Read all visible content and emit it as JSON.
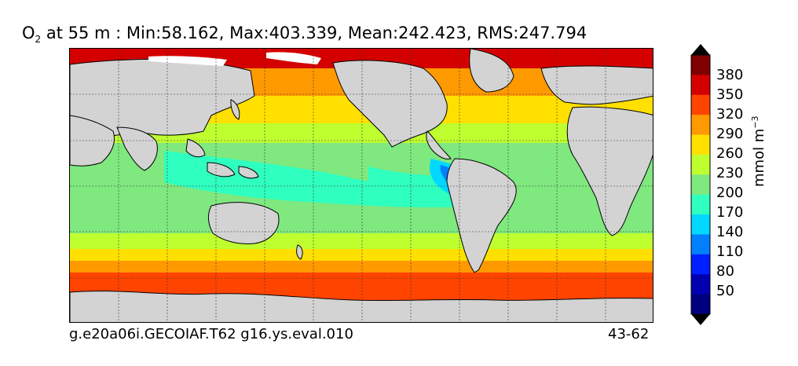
{
  "title": {
    "species_main": "O",
    "species_sub": "2",
    "rest": " at 55 m : Min:58.162, Max:403.339, Mean:242.423, RMS:247.794"
  },
  "footer": {
    "left": "g.e20a06i.GECOIAF.T62 g16.ys.eval.010",
    "right": "43-62"
  },
  "colorbar": {
    "unit_main": "mmol m",
    "unit_exp": "−3",
    "ticks": [
      "380",
      "350",
      "320",
      "290",
      "260",
      "230",
      "200",
      "170",
      "140",
      "110",
      "80",
      "50"
    ],
    "colors": [
      "#7f0000",
      "#d40000",
      "#ff4400",
      "#ff9900",
      "#ffe000",
      "#bfff30",
      "#7fe87f",
      "#2fffbf",
      "#00d8ff",
      "#0080ff",
      "#0020ff",
      "#0000b0",
      "#00007f"
    ],
    "over_color": "#000000",
    "under_color": "#000000"
  },
  "map": {
    "land_color": "#d3d3d3",
    "missing_color": "#ffffff"
  }
}
